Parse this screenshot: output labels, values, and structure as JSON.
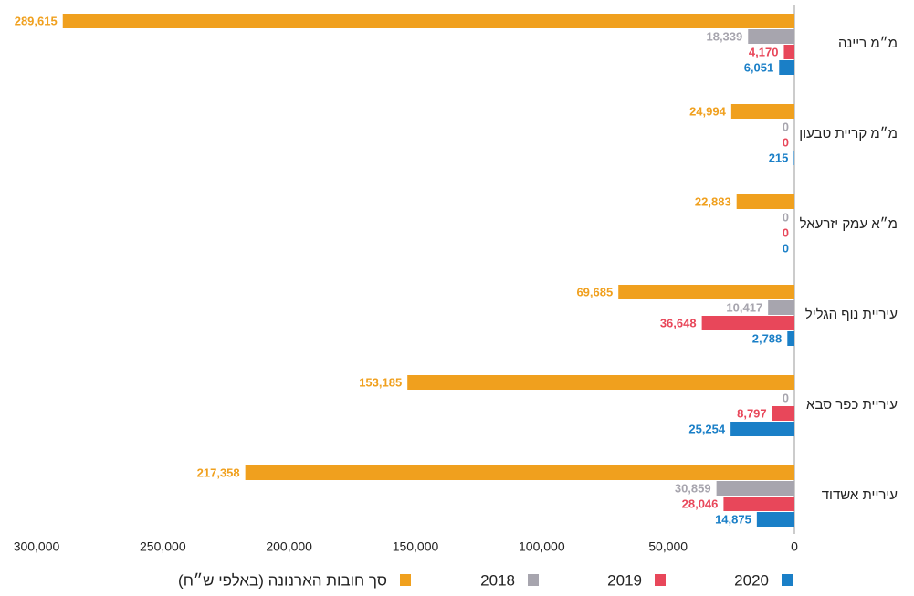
{
  "chart_data": {
    "type": "barh",
    "categories": [
      "מ״מ ריינה",
      "מ״מ קריית טבעון",
      "מ״א עמק יזרעאל",
      "עיריית נוף הגליל",
      "עיריית כפר סבא",
      "עיריית אשדוד"
    ],
    "series": [
      {
        "name": "סך חובות הארנונה (באלפי ש״ח)",
        "color": "#f0a01e",
        "values": [
          289615,
          24994,
          22883,
          69685,
          153185,
          217358
        ],
        "value_labels": [
          "289,615",
          "24,994",
          "22,883",
          "69,685",
          "153,185",
          "217,358"
        ]
      },
      {
        "name": "2018",
        "color": "#a7a5ae",
        "values": [
          18339,
          0,
          0,
          10417,
          0,
          30859
        ],
        "value_labels": [
          "18,339",
          "0",
          "0",
          "10,417",
          "0",
          "30,859"
        ]
      },
      {
        "name": "2019",
        "color": "#e8475a",
        "values": [
          4170,
          0,
          0,
          36648,
          8797,
          28046
        ],
        "value_labels": [
          "4,170",
          "0",
          "0",
          "36,648",
          "8,797",
          "28,046"
        ]
      },
      {
        "name": "2020",
        "color": "#1a7fc7",
        "values": [
          6051,
          215,
          0,
          2788,
          25254,
          14875
        ],
        "value_labels": [
          "6,051",
          "215",
          "0",
          "2,788",
          "25,254",
          "14,875"
        ]
      }
    ],
    "xlim": [
      0,
      300000
    ],
    "reversed": true,
    "xticks": [
      0,
      {
        "value": 50000,
        "label": "50,000"
      },
      {
        "value": 100000,
        "label": "100,000"
      },
      {
        "value": 150000,
        "label": "150,000"
      },
      {
        "value": 200000,
        "label": "200,000"
      },
      {
        "value": 250000,
        "label": "250,000"
      },
      {
        "value": 300000,
        "label": "300,000"
      }
    ],
    "legend": "bottom"
  }
}
